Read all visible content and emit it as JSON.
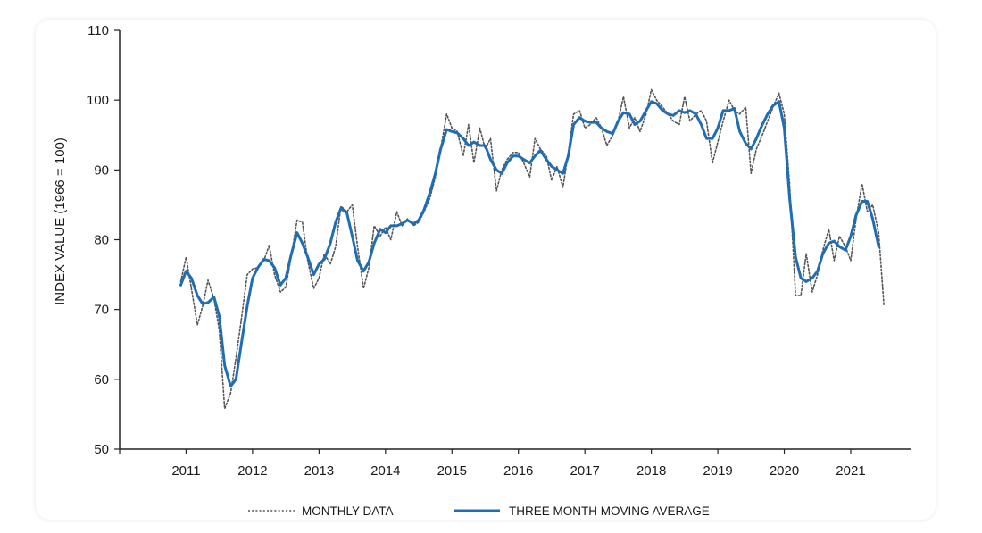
{
  "chart_data": {
    "type": "line",
    "ylabel": "INDEX VALUE (1966 = 100)",
    "xlabel": "",
    "ylim": [
      50,
      110
    ],
    "yticks": [
      50,
      60,
      70,
      80,
      90,
      100,
      110
    ],
    "xlim": [
      2010.0,
      2021.9
    ],
    "xticks": [
      "2011",
      "2012",
      "2013",
      "2014",
      "2015",
      "2016",
      "2017",
      "2018",
      "2019",
      "2020",
      "2021"
    ],
    "grid": false,
    "legend": "bottom",
    "colors": {
      "monthly": "#555555",
      "moving_average": "#1f6db5"
    },
    "series": [
      {
        "name": "MONTHLY DATA",
        "style": "dotted",
        "points": [
          [
            2010.92,
            74.0
          ],
          [
            2011.0,
            77.5
          ],
          [
            2011.08,
            73.0
          ],
          [
            2011.17,
            67.8
          ],
          [
            2011.25,
            70.5
          ],
          [
            2011.33,
            74.2
          ],
          [
            2011.42,
            71.5
          ],
          [
            2011.5,
            67.0
          ],
          [
            2011.58,
            55.8
          ],
          [
            2011.67,
            58.0
          ],
          [
            2011.75,
            63.0
          ],
          [
            2011.83,
            68.5
          ],
          [
            2011.92,
            75.0
          ],
          [
            2012.0,
            75.8
          ],
          [
            2012.08,
            76.0
          ],
          [
            2012.17,
            77.0
          ],
          [
            2012.25,
            79.2
          ],
          [
            2012.33,
            75.0
          ],
          [
            2012.42,
            72.5
          ],
          [
            2012.5,
            73.2
          ],
          [
            2012.58,
            77.5
          ],
          [
            2012.67,
            82.8
          ],
          [
            2012.75,
            82.5
          ],
          [
            2012.83,
            77.0
          ],
          [
            2012.92,
            73.0
          ],
          [
            2013.0,
            74.5
          ],
          [
            2013.08,
            78.0
          ],
          [
            2013.17,
            76.5
          ],
          [
            2013.25,
            79.0
          ],
          [
            2013.33,
            84.8
          ],
          [
            2013.42,
            84.0
          ],
          [
            2013.5,
            85.0
          ],
          [
            2013.58,
            79.0
          ],
          [
            2013.67,
            73.0
          ],
          [
            2013.75,
            76.0
          ],
          [
            2013.83,
            82.0
          ],
          [
            2013.92,
            80.5
          ],
          [
            2014.0,
            81.8
          ],
          [
            2014.08,
            80.0
          ],
          [
            2014.17,
            84.0
          ],
          [
            2014.25,
            82.0
          ],
          [
            2014.33,
            83.0
          ],
          [
            2014.42,
            82.0
          ],
          [
            2014.5,
            82.5
          ],
          [
            2014.58,
            84.0
          ],
          [
            2014.67,
            86.0
          ],
          [
            2014.75,
            89.0
          ],
          [
            2014.83,
            93.0
          ],
          [
            2014.92,
            98.0
          ],
          [
            2015.0,
            96.0
          ],
          [
            2015.08,
            95.5
          ],
          [
            2015.17,
            92.0
          ],
          [
            2015.25,
            96.5
          ],
          [
            2015.33,
            91.0
          ],
          [
            2015.42,
            96.0
          ],
          [
            2015.5,
            93.0
          ],
          [
            2015.58,
            94.5
          ],
          [
            2015.67,
            87.0
          ],
          [
            2015.75,
            90.0
          ],
          [
            2015.83,
            91.5
          ],
          [
            2015.92,
            92.5
          ],
          [
            2016.0,
            92.5
          ],
          [
            2016.08,
            91.0
          ],
          [
            2016.17,
            89.0
          ],
          [
            2016.25,
            94.5
          ],
          [
            2016.33,
            93.0
          ],
          [
            2016.42,
            92.0
          ],
          [
            2016.5,
            88.5
          ],
          [
            2016.58,
            90.5
          ],
          [
            2016.67,
            87.5
          ],
          [
            2016.75,
            92.5
          ],
          [
            2016.83,
            98.0
          ],
          [
            2016.92,
            98.5
          ],
          [
            2017.0,
            96.0
          ],
          [
            2017.08,
            96.5
          ],
          [
            2017.17,
            97.5
          ],
          [
            2017.25,
            96.0
          ],
          [
            2017.33,
            93.5
          ],
          [
            2017.42,
            95.0
          ],
          [
            2017.5,
            97.0
          ],
          [
            2017.58,
            100.5
          ],
          [
            2017.67,
            96.0
          ],
          [
            2017.75,
            97.5
          ],
          [
            2017.83,
            95.5
          ],
          [
            2017.92,
            98.0
          ],
          [
            2018.0,
            101.5
          ],
          [
            2018.08,
            100.0
          ],
          [
            2018.17,
            99.0
          ],
          [
            2018.25,
            98.0
          ],
          [
            2018.33,
            97.0
          ],
          [
            2018.42,
            96.5
          ],
          [
            2018.5,
            100.5
          ],
          [
            2018.58,
            97.0
          ],
          [
            2018.67,
            98.0
          ],
          [
            2018.75,
            98.5
          ],
          [
            2018.83,
            97.0
          ],
          [
            2018.92,
            91.0
          ],
          [
            2019.0,
            94.0
          ],
          [
            2019.08,
            97.0
          ],
          [
            2019.17,
            100.0
          ],
          [
            2019.25,
            98.5
          ],
          [
            2019.33,
            98.0
          ],
          [
            2019.42,
            99.0
          ],
          [
            2019.5,
            89.5
          ],
          [
            2019.58,
            93.0
          ],
          [
            2019.67,
            95.0
          ],
          [
            2019.75,
            97.0
          ],
          [
            2019.83,
            99.0
          ],
          [
            2019.92,
            101.0
          ],
          [
            2020.0,
            98.0
          ],
          [
            2020.08,
            88.0
          ],
          [
            2020.17,
            72.0
          ],
          [
            2020.25,
            72.0
          ],
          [
            2020.33,
            78.0
          ],
          [
            2020.42,
            72.5
          ],
          [
            2020.5,
            75.0
          ],
          [
            2020.58,
            78.5
          ],
          [
            2020.67,
            81.5
          ],
          [
            2020.75,
            77.0
          ],
          [
            2020.83,
            80.5
          ],
          [
            2020.92,
            79.0
          ],
          [
            2021.0,
            77.0
          ],
          [
            2021.08,
            83.0
          ],
          [
            2021.17,
            88.0
          ],
          [
            2021.25,
            84.0
          ],
          [
            2021.33,
            85.0
          ],
          [
            2021.42,
            81.0
          ],
          [
            2021.5,
            70.5
          ]
        ]
      },
      {
        "name": "THREE MONTH MOVING AVERAGE",
        "style": "solid",
        "points": [
          [
            2010.92,
            73.5
          ],
          [
            2011.0,
            75.5
          ],
          [
            2011.08,
            74.5
          ],
          [
            2011.17,
            72.0
          ],
          [
            2011.25,
            70.8
          ],
          [
            2011.33,
            71.0
          ],
          [
            2011.42,
            71.8
          ],
          [
            2011.5,
            69.0
          ],
          [
            2011.58,
            62.0
          ],
          [
            2011.67,
            59.0
          ],
          [
            2011.75,
            60.0
          ],
          [
            2011.83,
            65.0
          ],
          [
            2011.92,
            70.5
          ],
          [
            2012.0,
            74.5
          ],
          [
            2012.08,
            76.0
          ],
          [
            2012.17,
            77.2
          ],
          [
            2012.25,
            77.0
          ],
          [
            2012.33,
            76.0
          ],
          [
            2012.42,
            73.5
          ],
          [
            2012.5,
            74.5
          ],
          [
            2012.58,
            77.8
          ],
          [
            2012.67,
            81.0
          ],
          [
            2012.75,
            79.5
          ],
          [
            2012.83,
            77.5
          ],
          [
            2012.92,
            75.0
          ],
          [
            2013.0,
            76.5
          ],
          [
            2013.08,
            77.2
          ],
          [
            2013.17,
            79.5
          ],
          [
            2013.25,
            82.5
          ],
          [
            2013.33,
            84.5
          ],
          [
            2013.42,
            83.8
          ],
          [
            2013.5,
            80.5
          ],
          [
            2013.58,
            77.0
          ],
          [
            2013.67,
            75.5
          ],
          [
            2013.75,
            76.8
          ],
          [
            2013.83,
            79.5
          ],
          [
            2013.92,
            81.5
          ],
          [
            2014.0,
            81.0
          ],
          [
            2014.08,
            82.0
          ],
          [
            2014.17,
            82.0
          ],
          [
            2014.25,
            82.3
          ],
          [
            2014.33,
            82.8
          ],
          [
            2014.42,
            82.3
          ],
          [
            2014.5,
            82.8
          ],
          [
            2014.58,
            84.3
          ],
          [
            2014.67,
            86.8
          ],
          [
            2014.75,
            89.5
          ],
          [
            2014.83,
            93.0
          ],
          [
            2014.92,
            95.8
          ],
          [
            2015.0,
            95.5
          ],
          [
            2015.08,
            95.3
          ],
          [
            2015.17,
            94.5
          ],
          [
            2015.25,
            93.5
          ],
          [
            2015.33,
            94.0
          ],
          [
            2015.42,
            93.5
          ],
          [
            2015.5,
            93.5
          ],
          [
            2015.58,
            91.5
          ],
          [
            2015.67,
            90.0
          ],
          [
            2015.75,
            89.5
          ],
          [
            2015.83,
            91.0
          ],
          [
            2015.92,
            92.0
          ],
          [
            2016.0,
            92.0
          ],
          [
            2016.08,
            91.5
          ],
          [
            2016.17,
            91.0
          ],
          [
            2016.25,
            92.0
          ],
          [
            2016.33,
            92.8
          ],
          [
            2016.42,
            91.5
          ],
          [
            2016.5,
            90.5
          ],
          [
            2016.58,
            90.0
          ],
          [
            2016.67,
            89.5
          ],
          [
            2016.75,
            92.0
          ],
          [
            2016.83,
            96.5
          ],
          [
            2016.92,
            97.5
          ],
          [
            2017.0,
            97.0
          ],
          [
            2017.08,
            96.8
          ],
          [
            2017.17,
            96.8
          ],
          [
            2017.25,
            96.0
          ],
          [
            2017.33,
            95.5
          ],
          [
            2017.42,
            95.2
          ],
          [
            2017.5,
            97.0
          ],
          [
            2017.58,
            98.2
          ],
          [
            2017.67,
            98.0
          ],
          [
            2017.75,
            96.5
          ],
          [
            2017.83,
            97.0
          ],
          [
            2017.92,
            98.5
          ],
          [
            2018.0,
            99.8
          ],
          [
            2018.08,
            99.5
          ],
          [
            2018.17,
            98.5
          ],
          [
            2018.25,
            98.0
          ],
          [
            2018.33,
            97.8
          ],
          [
            2018.42,
            98.5
          ],
          [
            2018.5,
            98.2
          ],
          [
            2018.58,
            98.5
          ],
          [
            2018.67,
            98.0
          ],
          [
            2018.75,
            96.5
          ],
          [
            2018.83,
            94.5
          ],
          [
            2018.92,
            94.5
          ],
          [
            2019.0,
            96.0
          ],
          [
            2019.08,
            98.5
          ],
          [
            2019.17,
            98.5
          ],
          [
            2019.25,
            98.8
          ],
          [
            2019.33,
            95.5
          ],
          [
            2019.42,
            93.8
          ],
          [
            2019.5,
            93.0
          ],
          [
            2019.58,
            94.5
          ],
          [
            2019.67,
            96.5
          ],
          [
            2019.75,
            98.0
          ],
          [
            2019.83,
            99.2
          ],
          [
            2019.92,
            99.8
          ],
          [
            2020.0,
            96.0
          ],
          [
            2020.08,
            86.0
          ],
          [
            2020.17,
            77.5
          ],
          [
            2020.25,
            74.5
          ],
          [
            2020.33,
            74.0
          ],
          [
            2020.42,
            74.5
          ],
          [
            2020.5,
            75.5
          ],
          [
            2020.58,
            78.0
          ],
          [
            2020.67,
            79.5
          ],
          [
            2020.75,
            79.8
          ],
          [
            2020.83,
            79.0
          ],
          [
            2020.92,
            78.5
          ],
          [
            2021.0,
            80.5
          ],
          [
            2021.08,
            83.5
          ],
          [
            2021.17,
            85.5
          ],
          [
            2021.25,
            85.5
          ],
          [
            2021.33,
            83.0
          ],
          [
            2021.42,
            79.0
          ]
        ]
      }
    ]
  }
}
